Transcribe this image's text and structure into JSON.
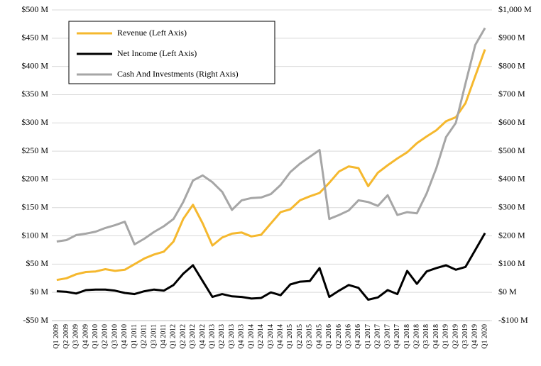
{
  "chart_data": {
    "type": "line",
    "categories": [
      "Q1 2009",
      "Q2 2009",
      "Q3 2009",
      "Q4 2009",
      "Q1 2010",
      "Q2 2010",
      "Q3 2010",
      "Q4 2010",
      "Q1 2011",
      "Q2 2011",
      "Q3 2011",
      "Q4 2011",
      "Q1 2012",
      "Q2 2012",
      "Q3 2012",
      "Q4 2012",
      "Q1 2013",
      "Q2 2013",
      "Q3 2013",
      "Q4 2013",
      "Q1 2014",
      "Q2 2014",
      "Q3 2014",
      "Q4 2014",
      "Q1 2015",
      "Q2 2015",
      "Q3 2015",
      "Q4 2015",
      "Q1 2016",
      "Q2 2016",
      "Q3 2016",
      "Q4 2016",
      "Q1 2017",
      "Q2 2017",
      "Q3 2017",
      "Q4 2017",
      "Q1 2018",
      "Q2 2018",
      "Q3 2018",
      "Q4 2018",
      "Q1 2019",
      "Q2 2019",
      "Q3 2019",
      "Q4 2019",
      "Q1 2020"
    ],
    "series": [
      {
        "name": "Revenue (Left Axis)",
        "color": "#f5b82e",
        "values": [
          22,
          25,
          32,
          36,
          37,
          41,
          38,
          40,
          50,
          60,
          67,
          72,
          90,
          130,
          155,
          122,
          83,
          97,
          104,
          106,
          99,
          102,
          122,
          142,
          147,
          163,
          170,
          176,
          194,
          214,
          223,
          220,
          188,
          212,
          225,
          237,
          248,
          264,
          276,
          287,
          303,
          310,
          335,
          383,
          430
        ]
      },
      {
        "name": "Net Income (Left Axis)",
        "color": "#000000",
        "values": [
          2,
          1,
          -2,
          4,
          5,
          5,
          3,
          -1,
          -3,
          2,
          5,
          3,
          13,
          33,
          48,
          20,
          -8,
          -3,
          -7,
          -8,
          -11,
          -10,
          0,
          -5,
          14,
          19,
          20,
          43,
          -8,
          3,
          13,
          8,
          -13,
          -9,
          4,
          -3,
          38,
          15,
          37,
          43,
          48,
          40,
          45,
          75,
          105
        ]
      },
      {
        "name": "Cash And Investments (Right Axis)",
        "color": "#a6a6a6",
        "axis": "y2",
        "values": [
          180,
          185,
          203,
          208,
          215,
          228,
          238,
          250,
          170,
          190,
          214,
          234,
          260,
          320,
          396,
          414,
          390,
          356,
          292,
          326,
          334,
          336,
          348,
          380,
          426,
          456,
          480,
          504,
          260,
          274,
          290,
          326,
          320,
          306,
          344,
          274,
          284,
          280,
          350,
          440,
          550,
          600,
          740,
          876,
          936
        ]
      }
    ],
    "ylim": [
      -50,
      500
    ],
    "yticks": [
      {
        "value": -50,
        "label": "-$50 M"
      },
      {
        "value": 0,
        "label": "$0 M"
      },
      {
        "value": 50,
        "label": "$50 M"
      },
      {
        "value": 100,
        "label": "$100 M"
      },
      {
        "value": 150,
        "label": "$150 M"
      },
      {
        "value": 200,
        "label": "$200 M"
      },
      {
        "value": 250,
        "label": "$250 M"
      },
      {
        "value": 300,
        "label": "$300 M"
      },
      {
        "value": 350,
        "label": "$350 M"
      },
      {
        "value": 400,
        "label": "$400 M"
      },
      {
        "value": 450,
        "label": "$450 M"
      },
      {
        "value": 500,
        "label": "$500 M"
      }
    ],
    "y2lim": [
      -100,
      1000
    ],
    "y2ticks": [
      {
        "value": -100,
        "label": "-$100 M"
      },
      {
        "value": 0,
        "label": "$0 M"
      },
      {
        "value": 100,
        "label": "$100 M"
      },
      {
        "value": 200,
        "label": "$200 M"
      },
      {
        "value": 300,
        "label": "$300 M"
      },
      {
        "value": 400,
        "label": "$400 M"
      },
      {
        "value": 500,
        "label": "$500 M"
      },
      {
        "value": 600,
        "label": "$600 M"
      },
      {
        "value": 700,
        "label": "$700 M"
      },
      {
        "value": 800,
        "label": "$800 M"
      },
      {
        "value": 900,
        "label": "$900 M"
      },
      {
        "value": 1000,
        "label": "$1,000 M"
      }
    ],
    "grid": true,
    "legend": "top-left"
  }
}
